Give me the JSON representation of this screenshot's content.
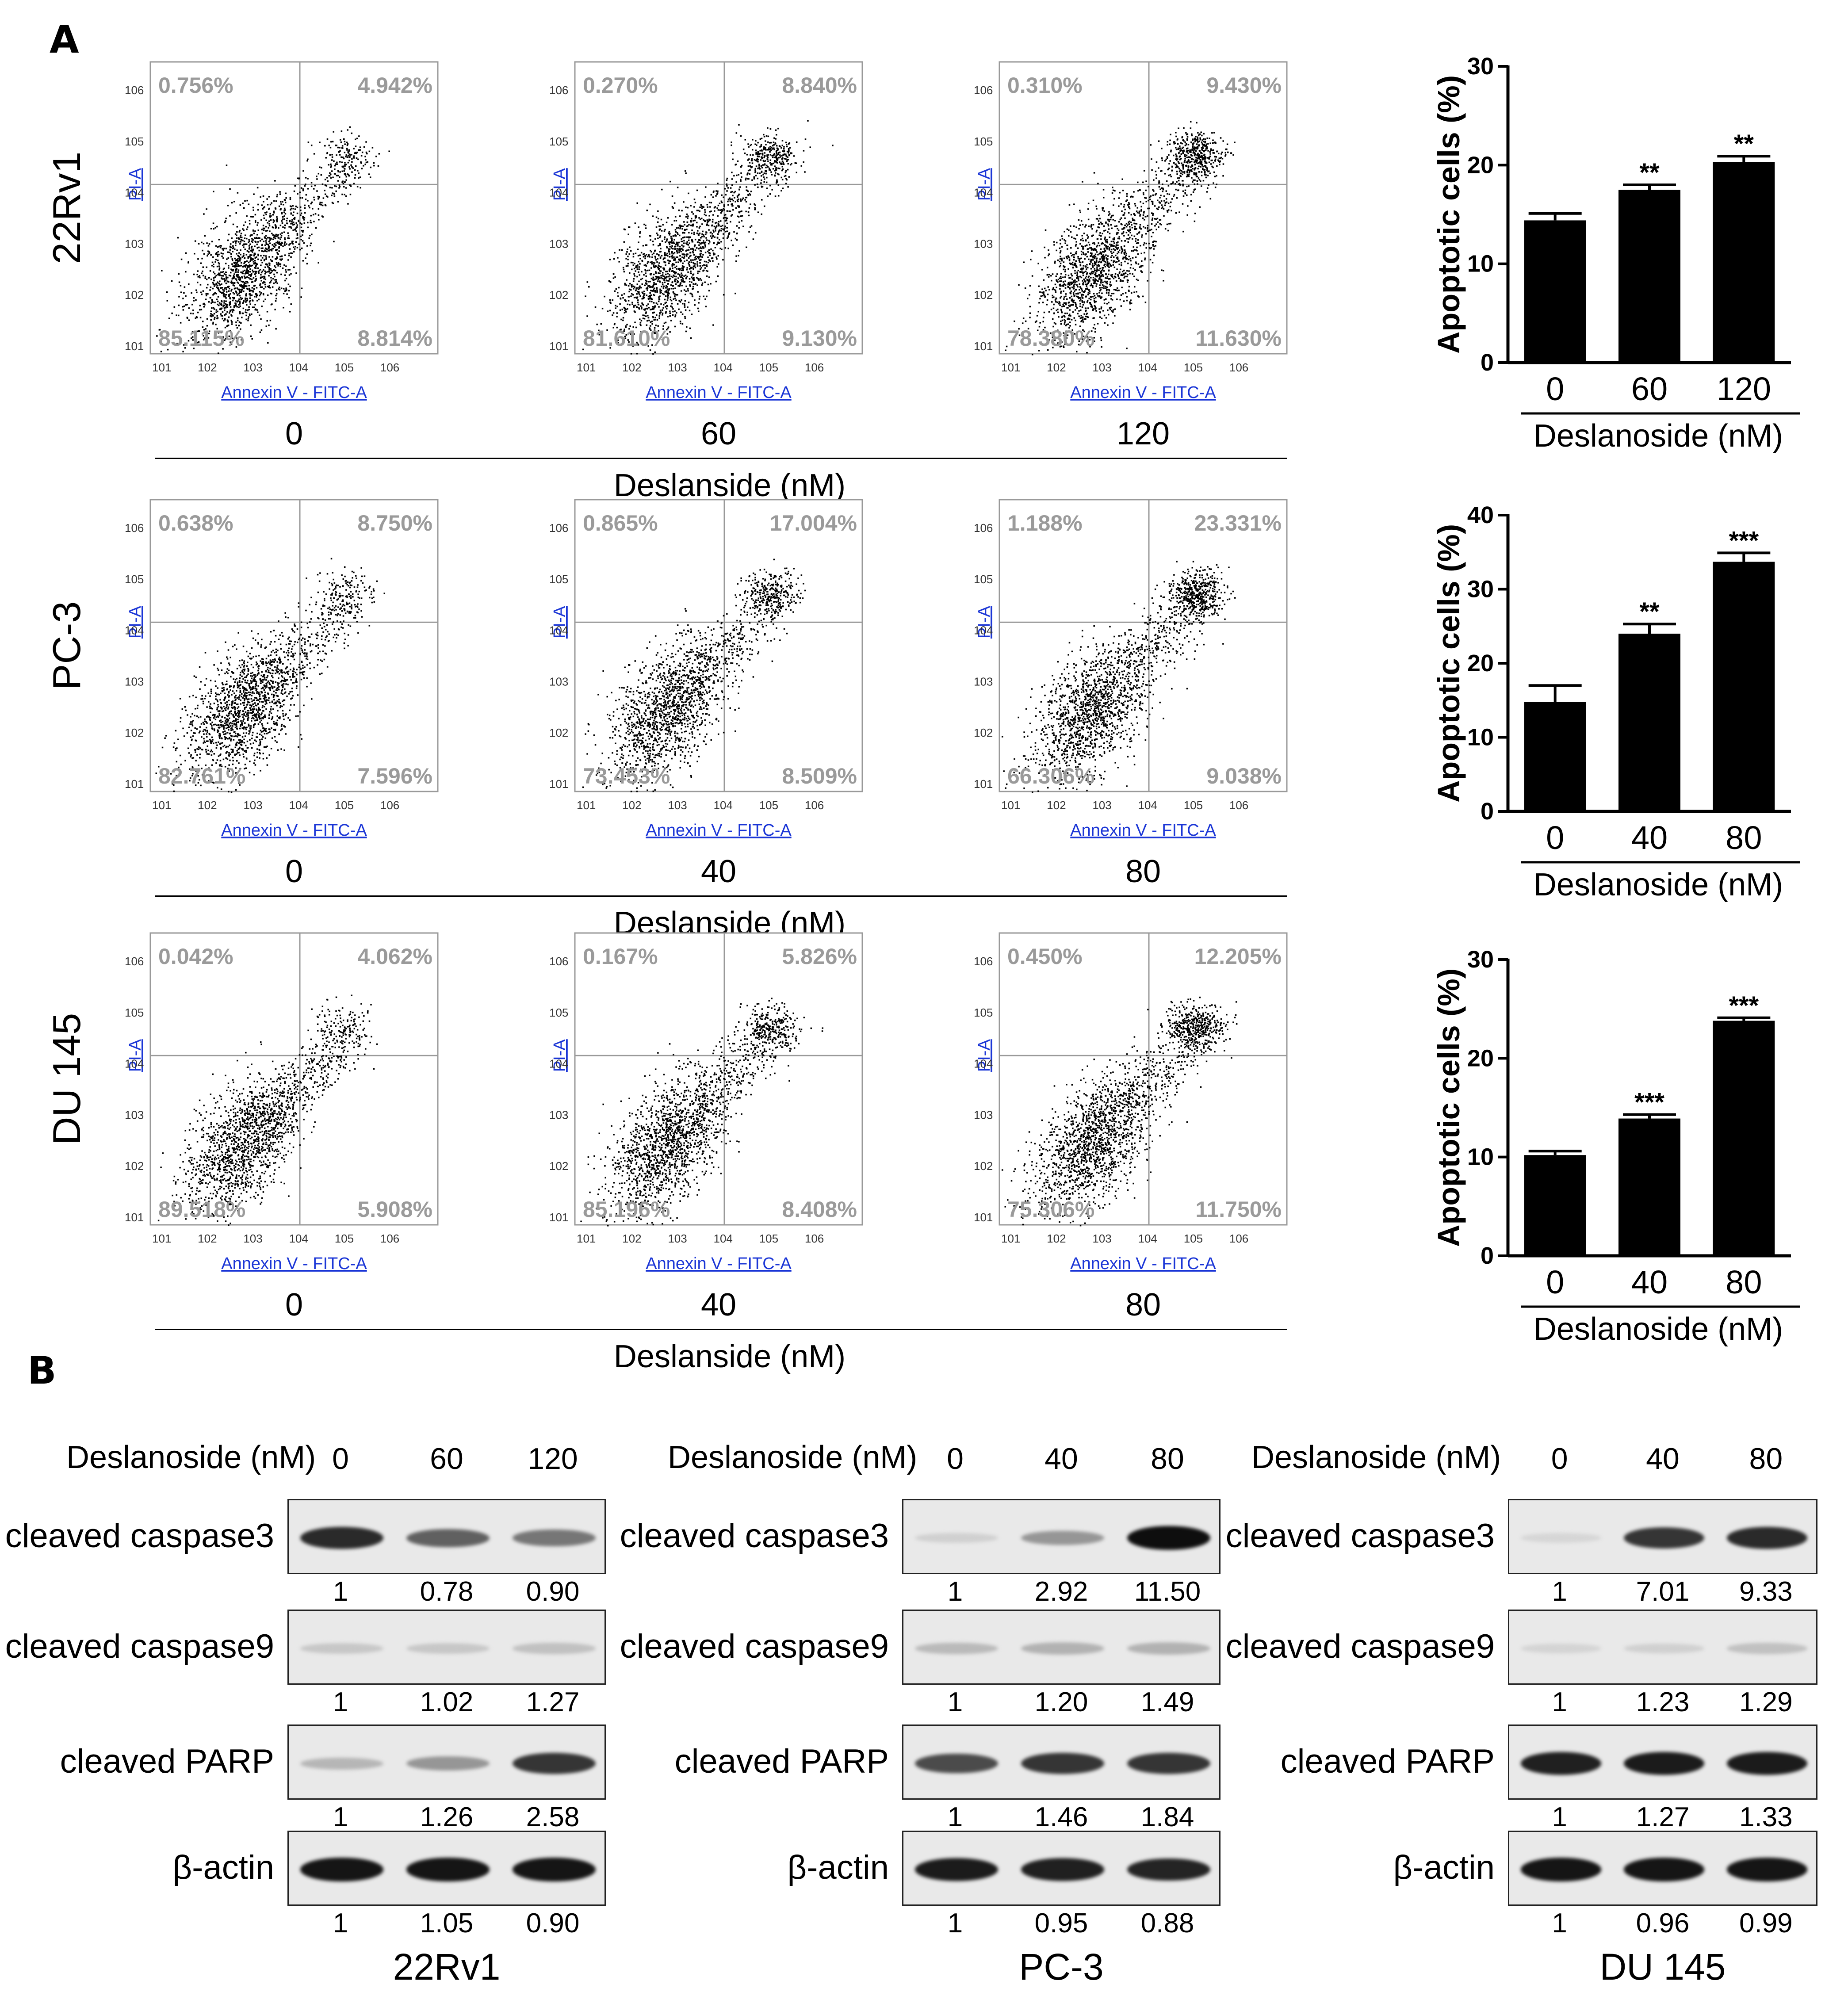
{
  "panel_labels": {
    "a": "A",
    "b": "B"
  },
  "flow": {
    "x_axis_label": "Annexin V - FITC-A",
    "y_axis_label": "PI-A",
    "tick_exps": [
      "1",
      "2",
      "3",
      "4",
      "5",
      "6"
    ],
    "rows": [
      {
        "cell_line": "22Rv1",
        "doses": [
          "0",
          "60",
          "120"
        ],
        "axis_title": "Deslanside (nM)",
        "plots": [
          {
            "q1": "0.756%",
            "q2": "4.942%",
            "q3": "85.115%",
            "q4": "8.814%"
          },
          {
            "q1": "0.270%",
            "q2": "8.840%",
            "q3": "81.610%",
            "q4": "9.130%"
          },
          {
            "q1": "0.310%",
            "q2": "9.430%",
            "q3": "78.380%",
            "q4": "11.630%"
          }
        ]
      },
      {
        "cell_line": "PC-3",
        "doses": [
          "0",
          "40",
          "80"
        ],
        "axis_title": "Deslanside (nM)",
        "plots": [
          {
            "q1": "0.638%",
            "q2": "8.750%",
            "q3": "82.761%",
            "q4": "7.596%"
          },
          {
            "q1": "0.865%",
            "q2": "17.004%",
            "q3": "73.453%",
            "q4": "8.509%"
          },
          {
            "q1": "1.188%",
            "q2": "23.331%",
            "q3": "66.306%",
            "q4": "9.038%"
          }
        ]
      },
      {
        "cell_line": "DU 145",
        "doses": [
          "0",
          "40",
          "80"
        ],
        "axis_title": "Deslanside (nM)",
        "plots": [
          {
            "q1": "0.042%",
            "q2": "4.062%",
            "q3": "89.518%",
            "q4": "5.908%"
          },
          {
            "q1": "0.167%",
            "q2": "5.826%",
            "q3": "85.196%",
            "q4": "8.408%"
          },
          {
            "q1": "0.450%",
            "q2": "12.205%",
            "q3": "75.306%",
            "q4": "11.750%"
          }
        ]
      }
    ]
  },
  "chart_data": [
    {
      "type": "bar",
      "categories": [
        "0",
        "60",
        "120"
      ],
      "values": [
        14.4,
        17.5,
        20.3
      ],
      "errors": [
        0.7,
        0.5,
        0.6
      ],
      "significance": [
        "",
        "**",
        "**"
      ],
      "ylabel": "Apoptotic cells (%)",
      "xlabel": "Deslanoside (nM)",
      "ylim": [
        0,
        30
      ],
      "yticks": [
        0,
        10,
        20,
        30
      ]
    },
    {
      "type": "bar",
      "categories": [
        "0",
        "40",
        "80"
      ],
      "values": [
        14.8,
        24.0,
        33.7
      ],
      "errors": [
        2.2,
        1.3,
        1.2
      ],
      "significance": [
        "",
        "**",
        "***"
      ],
      "ylabel": "Apoptotic cells (%)",
      "xlabel": "Deslanoside (nM)",
      "ylim": [
        0,
        40
      ],
      "yticks": [
        0,
        10,
        20,
        30,
        40
      ]
    },
    {
      "type": "bar",
      "categories": [
        "0",
        "40",
        "80"
      ],
      "values": [
        10.2,
        13.9,
        23.8
      ],
      "errors": [
        0.4,
        0.4,
        0.3
      ],
      "significance": [
        "",
        "***",
        "***"
      ],
      "ylabel": "Apoptotic cells (%)",
      "xlabel": "Deslanoside (nM)",
      "ylim": [
        0,
        30
      ],
      "yticks": [
        0,
        10,
        20,
        30
      ]
    }
  ],
  "western": [
    {
      "cell_line": "22Rv1",
      "header": "Deslanoside (nM)",
      "doses": [
        "0",
        "60",
        "120"
      ],
      "rows": [
        {
          "label": "cleaved caspase3",
          "values": [
            "1",
            "0.78",
            "0.90"
          ],
          "bands": [
            0.85,
            0.6,
            0.5
          ]
        },
        {
          "label": "cleaved caspase9",
          "values": [
            "1",
            "1.02",
            "1.27"
          ],
          "bands": [
            0.12,
            0.12,
            0.15
          ]
        },
        {
          "label": "cleaved PARP",
          "values": [
            "1",
            "1.26",
            "2.58"
          ],
          "bands": [
            0.2,
            0.35,
            0.8
          ]
        },
        {
          "label": "β-actin",
          "values": [
            "1",
            "1.05",
            "0.90"
          ],
          "bands": [
            0.95,
            0.95,
            0.95
          ]
        }
      ]
    },
    {
      "cell_line": "PC-3",
      "header": "Deslanoside (nM)",
      "doses": [
        "0",
        "40",
        "80"
      ],
      "rows": [
        {
          "label": "cleaved caspase3",
          "values": [
            "1",
            "2.92",
            "11.50"
          ],
          "bands": [
            0.08,
            0.35,
            0.98
          ]
        },
        {
          "label": "cleaved caspase9",
          "values": [
            "1",
            "1.20",
            "1.49"
          ],
          "bands": [
            0.18,
            0.22,
            0.22
          ]
        },
        {
          "label": "cleaved PARP",
          "values": [
            "1",
            "1.46",
            "1.84"
          ],
          "bands": [
            0.7,
            0.8,
            0.8
          ]
        },
        {
          "label": "β-actin",
          "values": [
            "1",
            "0.95",
            "0.88"
          ],
          "bands": [
            0.92,
            0.9,
            0.88
          ]
        }
      ]
    },
    {
      "cell_line": "DU 145",
      "header": "Deslanoside (nM)",
      "doses": [
        "0",
        "40",
        "80"
      ],
      "rows": [
        {
          "label": "cleaved caspase3",
          "values": [
            "1",
            "7.01",
            "9.33"
          ],
          "bands": [
            0.05,
            0.8,
            0.85
          ]
        },
        {
          "label": "cleaved caspase9",
          "values": [
            "1",
            "1.23",
            "1.29"
          ],
          "bands": [
            0.06,
            0.08,
            0.15
          ]
        },
        {
          "label": "cleaved PARP",
          "values": [
            "1",
            "1.27",
            "1.33"
          ],
          "bands": [
            0.9,
            0.92,
            0.92
          ]
        },
        {
          "label": "β-actin",
          "values": [
            "1",
            "0.96",
            "0.99"
          ],
          "bands": [
            0.95,
            0.95,
            0.95
          ]
        }
      ]
    }
  ]
}
